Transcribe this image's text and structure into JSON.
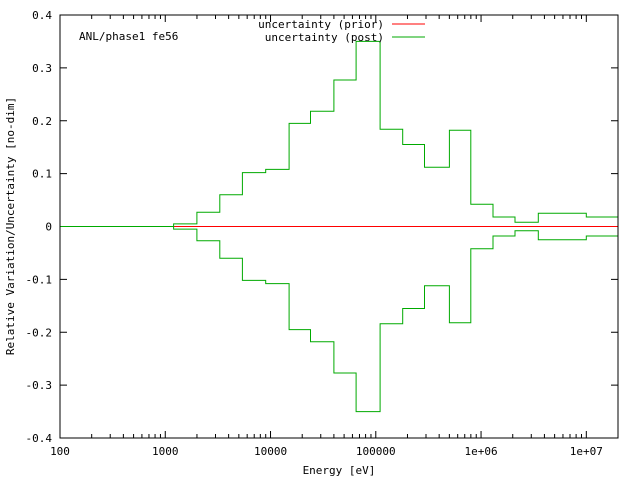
{
  "chart_data": {
    "type": "line",
    "annotation": "ANL/phase1 fe56",
    "xlabel": "Energy [eV]",
    "ylabel": "Relative Variation/Uncertainty [no-dim]",
    "xscale": "log",
    "xlim": [
      100,
      20000000
    ],
    "ylim": [
      -0.4,
      0.4
    ],
    "legend_position": "top-center",
    "x_tick_values": [
      100,
      1000,
      10000,
      100000,
      1000000,
      10000000
    ],
    "x_tick_labels": [
      "100",
      "1000",
      "10000",
      "100000",
      "1e+06",
      "1e+07"
    ],
    "y_tick_values": [
      -0.4,
      -0.3,
      -0.2,
      -0.1,
      0,
      0.1,
      0.2,
      0.3,
      0.4
    ],
    "y_tick_labels": [
      "-0.4",
      "-0.3",
      "-0.2",
      "-0.1",
      "0",
      "0.1",
      "0.2",
      "0.3",
      "0.4"
    ],
    "series": [
      {
        "name": "uncertainty (prior)",
        "color": "#ff0000",
        "style": "step",
        "bin_edges": [
          1200,
          20000000
        ],
        "values": [
          0
        ]
      },
      {
        "name": "uncertainty (post)",
        "color": "#00aa00",
        "style": "step",
        "mirrored": true,
        "bin_edges": [
          100,
          1200,
          2000,
          3300,
          5400,
          9000,
          15000,
          24000,
          40000,
          65000,
          110000,
          180000,
          290000,
          500000,
          800000,
          1300000,
          2100000,
          3500000,
          10000000,
          20000000
        ],
        "values": [
          0,
          0.005,
          0.027,
          0.06,
          0.102,
          0.108,
          0.195,
          0.218,
          0.277,
          0.35,
          0.184,
          0.155,
          0.112,
          0.182,
          0.042,
          0.018,
          0.008,
          0.025,
          0.018
        ]
      }
    ]
  }
}
